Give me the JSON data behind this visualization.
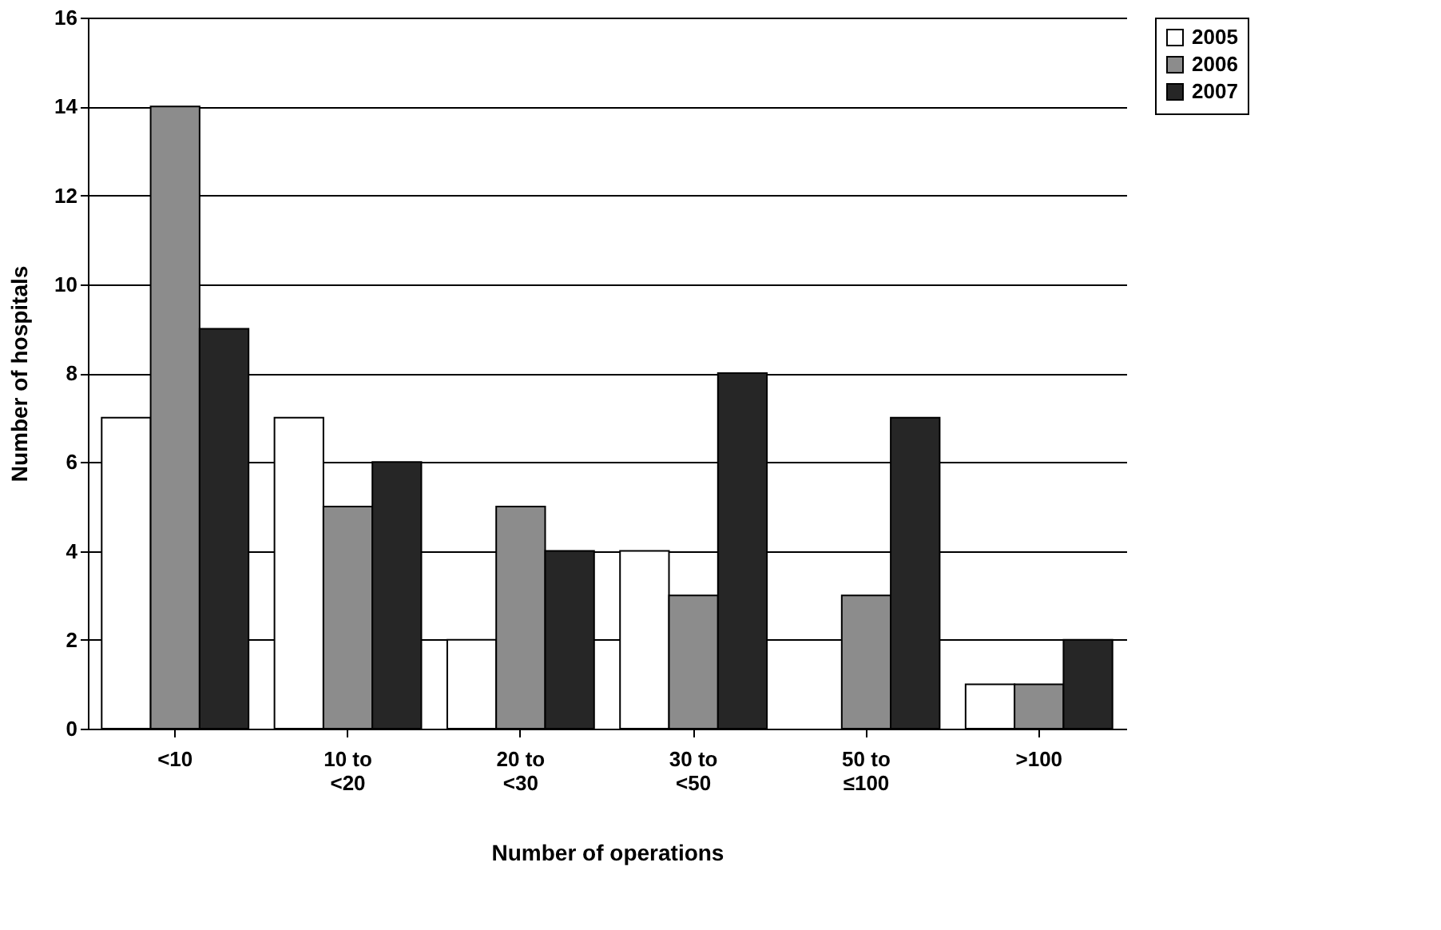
{
  "chart_data": {
    "type": "bar",
    "xlabel": "Number of operations",
    "ylabel": "Number of hospitals",
    "categories": [
      "<10",
      "10 to <20",
      "20 to <30",
      "30 to <50",
      "50 to ≤100",
      ">100"
    ],
    "series": [
      {
        "name": "2005",
        "color": "#ffffff",
        "values": [
          7,
          7,
          2,
          4,
          0,
          1
        ]
      },
      {
        "name": "2006",
        "color": "#8c8c8c",
        "values": [
          14,
          5,
          5,
          3,
          3,
          1
        ]
      },
      {
        "name": "2007",
        "color": "#262626",
        "values": [
          9,
          6,
          4,
          8,
          7,
          2
        ]
      }
    ],
    "ylim": [
      0,
      16
    ],
    "yticks": [
      0,
      2,
      4,
      6,
      8,
      10,
      12,
      14,
      16
    ],
    "grid": "y",
    "legend": "right"
  }
}
